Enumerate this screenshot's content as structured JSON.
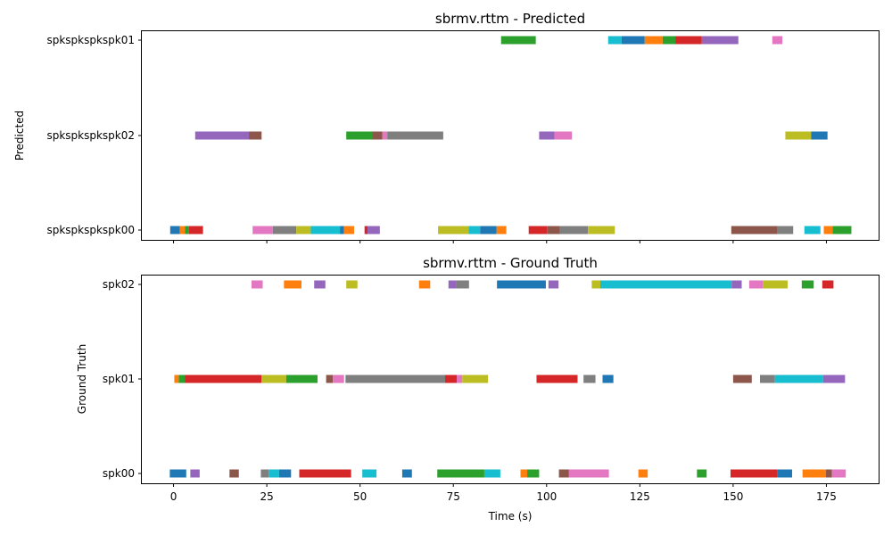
{
  "palette": [
    "#1f77b4",
    "#ff7f0e",
    "#2ca02c",
    "#d62728",
    "#9467bd",
    "#8c564b",
    "#e377c2",
    "#7f7f7f",
    "#bcbd22",
    "#17becf"
  ],
  "chart_data": [
    {
      "type": "timeline",
      "title": "sbrmv.rttm - Predicted",
      "ylabel": "Predicted",
      "xlabel": "",
      "xlim": [
        -8.5,
        189
      ],
      "xticks": [
        0,
        25,
        50,
        75,
        100,
        125,
        150,
        175
      ],
      "tick_labels_shown": false,
      "speakers": [
        "spkspkspkspk00",
        "spkspkspkspk02",
        "spkspkspkspk01"
      ],
      "segments": [
        {
          "spk": "spkspkspkspk01",
          "start": 87.8,
          "end": 97.1,
          "color": "#2ca02c"
        },
        {
          "spk": "spkspkspkspk01",
          "start": 116.5,
          "end": 120.1,
          "color": "#17becf"
        },
        {
          "spk": "spkspkspkspk01",
          "start": 120.1,
          "end": 126.3,
          "color": "#1f77b4"
        },
        {
          "spk": "spkspkspkspk01",
          "start": 126.3,
          "end": 131.1,
          "color": "#ff7f0e"
        },
        {
          "spk": "spkspkspkspk01",
          "start": 131.1,
          "end": 134.5,
          "color": "#2ca02c"
        },
        {
          "spk": "spkspkspkspk01",
          "start": 134.5,
          "end": 141.6,
          "color": "#d62728"
        },
        {
          "spk": "spkspkspkspk01",
          "start": 141.6,
          "end": 151.4,
          "color": "#9467bd"
        },
        {
          "spk": "spkspkspkspk01",
          "start": 160.5,
          "end": 163.2,
          "color": "#e377c2"
        },
        {
          "spk": "spkspkspkspk02",
          "start": 5.8,
          "end": 20.2,
          "color": "#9467bd"
        },
        {
          "spk": "spkspkspkspk02",
          "start": 20.2,
          "end": 23.6,
          "color": "#8c564b"
        },
        {
          "spk": "spkspkspkspk02",
          "start": 46.3,
          "end": 53.2,
          "color": "#2ca02c"
        },
        {
          "spk": "spkspkspkspk02",
          "start": 53.2,
          "end": 56.0,
          "color": "#8c564b"
        },
        {
          "spk": "spkspkspkspk02",
          "start": 56.0,
          "end": 57.3,
          "color": "#e377c2"
        },
        {
          "spk": "spkspkspkspk02",
          "start": 57.3,
          "end": 72.3,
          "color": "#7f7f7f"
        },
        {
          "spk": "spkspkspkspk02",
          "start": 98.0,
          "end": 102.1,
          "color": "#9467bd"
        },
        {
          "spk": "spkspkspkspk02",
          "start": 102.1,
          "end": 106.8,
          "color": "#e377c2"
        },
        {
          "spk": "spkspkspkspk02",
          "start": 164.0,
          "end": 170.9,
          "color": "#bcbd22"
        },
        {
          "spk": "spkspkspkspk02",
          "start": 170.9,
          "end": 175.3,
          "color": "#1f77b4"
        },
        {
          "spk": "spkspkspkspk00",
          "start": -0.9,
          "end": 1.7,
          "color": "#1f77b4"
        },
        {
          "spk": "spkspkspkspk00",
          "start": 1.7,
          "end": 3.1,
          "color": "#ff7f0e"
        },
        {
          "spk": "spkspkspkspk00",
          "start": 3.1,
          "end": 4.1,
          "color": "#2ca02c"
        },
        {
          "spk": "spkspkspkspk00",
          "start": 4.1,
          "end": 7.9,
          "color": "#d62728"
        },
        {
          "spk": "spkspkspkspk00",
          "start": 21.2,
          "end": 26.6,
          "color": "#e377c2"
        },
        {
          "spk": "spkspkspkspk00",
          "start": 26.6,
          "end": 32.9,
          "color": "#7f7f7f"
        },
        {
          "spk": "spkspkspkspk00",
          "start": 32.9,
          "end": 36.8,
          "color": "#bcbd22"
        },
        {
          "spk": "spkspkspkspk00",
          "start": 36.8,
          "end": 44.6,
          "color": "#17becf"
        },
        {
          "spk": "spkspkspkspk00",
          "start": 44.6,
          "end": 45.7,
          "color": "#1f77b4"
        },
        {
          "spk": "spkspkspkspk00",
          "start": 45.7,
          "end": 48.4,
          "color": "#ff7f0e"
        },
        {
          "spk": "spkspkspkspk00",
          "start": 51.2,
          "end": 52.0,
          "color": "#d62728"
        },
        {
          "spk": "spkspkspkspk00",
          "start": 52.0,
          "end": 55.3,
          "color": "#9467bd"
        },
        {
          "spk": "spkspkspkspk00",
          "start": 70.9,
          "end": 79.1,
          "color": "#bcbd22"
        },
        {
          "spk": "spkspkspkspk00",
          "start": 79.1,
          "end": 82.2,
          "color": "#17becf"
        },
        {
          "spk": "spkspkspkspk00",
          "start": 82.2,
          "end": 86.6,
          "color": "#1f77b4"
        },
        {
          "spk": "spkspkspkspk00",
          "start": 86.6,
          "end": 89.2,
          "color": "#ff7f0e"
        },
        {
          "spk": "spkspkspkspk00",
          "start": 95.2,
          "end": 100.1,
          "color": "#d62728"
        },
        {
          "spk": "spkspkspkspk00",
          "start": 100.1,
          "end": 103.6,
          "color": "#8c564b"
        },
        {
          "spk": "spkspkspkspk00",
          "start": 103.6,
          "end": 111.1,
          "color": "#7f7f7f"
        },
        {
          "spk": "spkspkspkspk00",
          "start": 111.1,
          "end": 118.3,
          "color": "#bcbd22"
        },
        {
          "spk": "spkspkspkspk00",
          "start": 149.5,
          "end": 161.9,
          "color": "#8c564b"
        },
        {
          "spk": "spkspkspkspk00",
          "start": 161.9,
          "end": 166.1,
          "color": "#7f7f7f"
        },
        {
          "spk": "spkspkspkspk00",
          "start": 169.1,
          "end": 173.4,
          "color": "#17becf"
        },
        {
          "spk": "spkspkspkspk00",
          "start": 174.3,
          "end": 176.7,
          "color": "#ff7f0e"
        },
        {
          "spk": "spkspkspkspk00",
          "start": 176.7,
          "end": 181.7,
          "color": "#2ca02c"
        }
      ]
    },
    {
      "type": "timeline",
      "title": "sbrmv.rttm - Ground Truth",
      "ylabel": "Ground Truth",
      "xlabel": "Time (s)",
      "xlim": [
        -8.5,
        189
      ],
      "xticks": [
        0,
        25,
        50,
        75,
        100,
        125,
        150,
        175
      ],
      "tick_labels_shown": true,
      "speakers": [
        "spk00",
        "spk01",
        "spk02"
      ],
      "segments": [
        {
          "spk": "spk02",
          "start": 20.9,
          "end": 23.9,
          "color": "#e377c2"
        },
        {
          "spk": "spk02",
          "start": 29.6,
          "end": 34.3,
          "color": "#ff7f0e"
        },
        {
          "spk": "spk02",
          "start": 37.7,
          "end": 40.7,
          "color": "#9467bd"
        },
        {
          "spk": "spk02",
          "start": 46.3,
          "end": 49.3,
          "color": "#bcbd22"
        },
        {
          "spk": "spk02",
          "start": 65.8,
          "end": 68.8,
          "color": "#ff7f0e"
        },
        {
          "spk": "spk02",
          "start": 73.7,
          "end": 75.8,
          "color": "#9467bd"
        },
        {
          "spk": "spk02",
          "start": 75.8,
          "end": 79.2,
          "color": "#7f7f7f"
        },
        {
          "spk": "spk02",
          "start": 86.7,
          "end": 99.8,
          "color": "#1f77b4"
        },
        {
          "spk": "spk02",
          "start": 100.5,
          "end": 103.2,
          "color": "#9467bd"
        },
        {
          "spk": "spk02",
          "start": 112.1,
          "end": 114.4,
          "color": "#bcbd22"
        },
        {
          "spk": "spk02",
          "start": 114.4,
          "end": 149.6,
          "color": "#17becf"
        },
        {
          "spk": "spk02",
          "start": 149.6,
          "end": 152.3,
          "color": "#9467bd"
        },
        {
          "spk": "spk02",
          "start": 154.3,
          "end": 158.0,
          "color": "#e377c2"
        },
        {
          "spk": "spk02",
          "start": 158.0,
          "end": 164.6,
          "color": "#bcbd22"
        },
        {
          "spk": "spk02",
          "start": 168.4,
          "end": 171.6,
          "color": "#2ca02c"
        },
        {
          "spk": "spk02",
          "start": 173.9,
          "end": 176.9,
          "color": "#d62728"
        },
        {
          "spk": "spk01",
          "start": 0.2,
          "end": 1.4,
          "color": "#ff7f0e"
        },
        {
          "spk": "spk01",
          "start": 1.4,
          "end": 3.1,
          "color": "#2ca02c"
        },
        {
          "spk": "spk01",
          "start": 3.1,
          "end": 23.6,
          "color": "#d62728"
        },
        {
          "spk": "spk01",
          "start": 23.6,
          "end": 30.2,
          "color": "#bcbd22"
        },
        {
          "spk": "spk01",
          "start": 30.2,
          "end": 38.6,
          "color": "#2ca02c"
        },
        {
          "spk": "spk01",
          "start": 40.9,
          "end": 42.7,
          "color": "#8c564b"
        },
        {
          "spk": "spk01",
          "start": 42.7,
          "end": 45.7,
          "color": "#e377c2"
        },
        {
          "spk": "spk01",
          "start": 46.1,
          "end": 72.8,
          "color": "#7f7f7f"
        },
        {
          "spk": "spk01",
          "start": 72.8,
          "end": 75.9,
          "color": "#d62728"
        },
        {
          "spk": "spk01",
          "start": 75.9,
          "end": 77.4,
          "color": "#e377c2"
        },
        {
          "spk": "spk01",
          "start": 77.4,
          "end": 84.3,
          "color": "#bcbd22"
        },
        {
          "spk": "spk01",
          "start": 97.3,
          "end": 108.3,
          "color": "#d62728"
        },
        {
          "spk": "spk01",
          "start": 109.9,
          "end": 113.1,
          "color": "#7f7f7f"
        },
        {
          "spk": "spk01",
          "start": 115.0,
          "end": 117.9,
          "color": "#1f77b4"
        },
        {
          "spk": "spk01",
          "start": 150.0,
          "end": 155.0,
          "color": "#8c564b"
        },
        {
          "spk": "spk01",
          "start": 157.2,
          "end": 161.2,
          "color": "#7f7f7f"
        },
        {
          "spk": "spk01",
          "start": 161.2,
          "end": 174.1,
          "color": "#17becf"
        },
        {
          "spk": "spk01",
          "start": 174.1,
          "end": 180.0,
          "color": "#9467bd"
        },
        {
          "spk": "spk00",
          "start": -1.0,
          "end": 3.4,
          "color": "#1f77b4"
        },
        {
          "spk": "spk00",
          "start": 4.5,
          "end": 7.0,
          "color": "#9467bd"
        },
        {
          "spk": "spk00",
          "start": 15.0,
          "end": 17.5,
          "color": "#8c564b"
        },
        {
          "spk": "spk00",
          "start": 23.4,
          "end": 25.5,
          "color": "#7f7f7f"
        },
        {
          "spk": "spk00",
          "start": 25.5,
          "end": 28.3,
          "color": "#17becf"
        },
        {
          "spk": "spk00",
          "start": 28.3,
          "end": 31.5,
          "color": "#1f77b4"
        },
        {
          "spk": "spk00",
          "start": 33.7,
          "end": 47.6,
          "color": "#d62728"
        },
        {
          "spk": "spk00",
          "start": 50.6,
          "end": 54.4,
          "color": "#17becf"
        },
        {
          "spk": "spk00",
          "start": 61.3,
          "end": 63.9,
          "color": "#1f77b4"
        },
        {
          "spk": "spk00",
          "start": 70.7,
          "end": 83.3,
          "color": "#2ca02c"
        },
        {
          "spk": "spk00",
          "start": 83.3,
          "end": 87.6,
          "color": "#17becf"
        },
        {
          "spk": "spk00",
          "start": 93.0,
          "end": 94.8,
          "color": "#ff7f0e"
        },
        {
          "spk": "spk00",
          "start": 94.8,
          "end": 98.0,
          "color": "#2ca02c"
        },
        {
          "spk": "spk00",
          "start": 103.3,
          "end": 106.0,
          "color": "#8c564b"
        },
        {
          "spk": "spk00",
          "start": 106.0,
          "end": 116.7,
          "color": "#e377c2"
        },
        {
          "spk": "spk00",
          "start": 124.6,
          "end": 127.1,
          "color": "#ff7f0e"
        },
        {
          "spk": "spk00",
          "start": 140.3,
          "end": 142.9,
          "color": "#2ca02c"
        },
        {
          "spk": "spk00",
          "start": 149.3,
          "end": 161.9,
          "color": "#d62728"
        },
        {
          "spk": "spk00",
          "start": 161.9,
          "end": 165.8,
          "color": "#1f77b4"
        },
        {
          "spk": "spk00",
          "start": 168.6,
          "end": 174.9,
          "color": "#ff7f0e"
        },
        {
          "spk": "spk00",
          "start": 174.9,
          "end": 176.5,
          "color": "#8c564b"
        },
        {
          "spk": "spk00",
          "start": 176.5,
          "end": 180.2,
          "color": "#e377c2"
        }
      ]
    }
  ]
}
